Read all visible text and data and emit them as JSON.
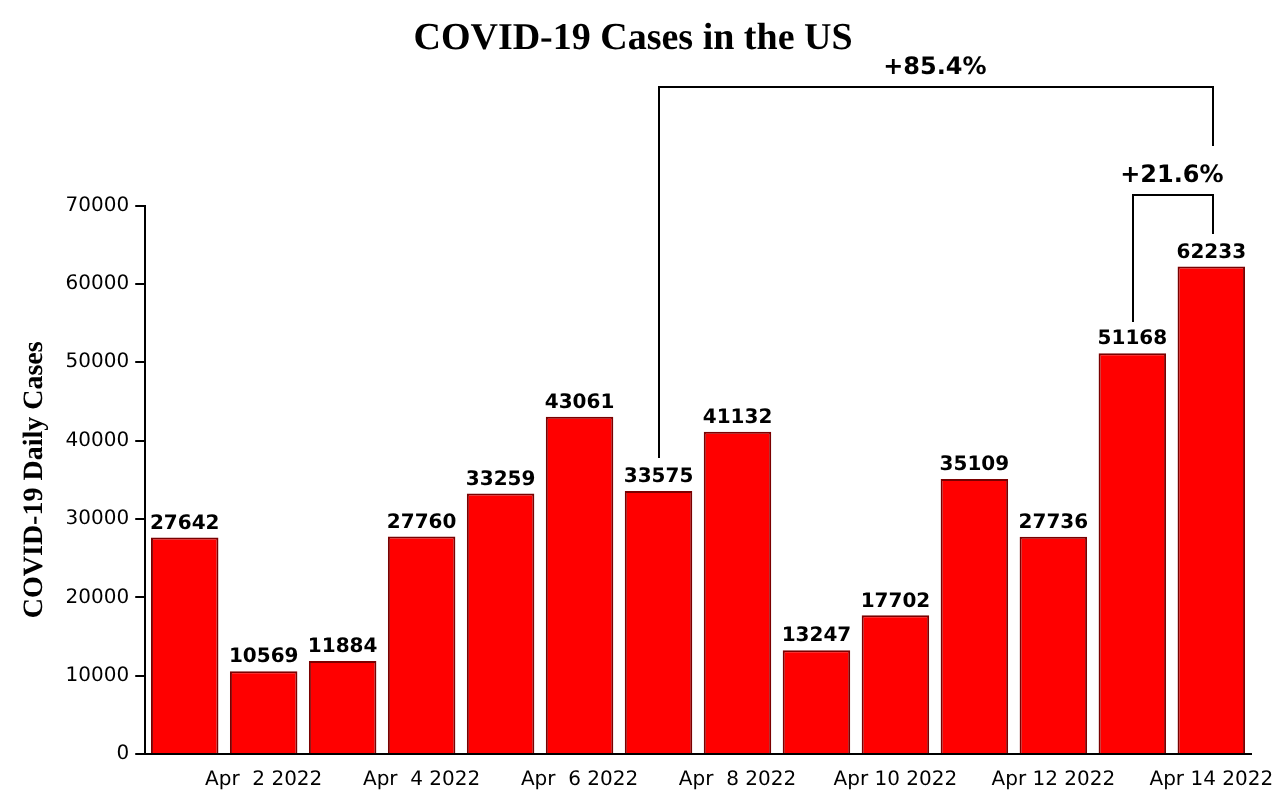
{
  "chart_data": {
    "type": "bar",
    "title": "COVID-19 Cases in the US",
    "ylabel": "COVID-19 Daily Cases",
    "categories": [
      null,
      "Apr  2 2022",
      null,
      "Apr  4 2022",
      null,
      "Apr  6 2022",
      null,
      "Apr  8 2022",
      null,
      "Apr 10 2022",
      null,
      "Apr 12 2022",
      null,
      "Apr 14 2022"
    ],
    "values": [
      27642,
      10569,
      11884,
      27760,
      33259,
      43061,
      33575,
      41132,
      13247,
      17702,
      35109,
      27736,
      51168,
      62233
    ],
    "color": "#ff0000",
    "ylim": [
      0,
      70000
    ],
    "yticks": [
      0,
      10000,
      20000,
      30000,
      40000,
      50000,
      60000,
      70000
    ],
    "data_labels": true,
    "grid": false,
    "legend": false,
    "annotations": [
      "+85.4%",
      "+21.6%"
    ]
  }
}
